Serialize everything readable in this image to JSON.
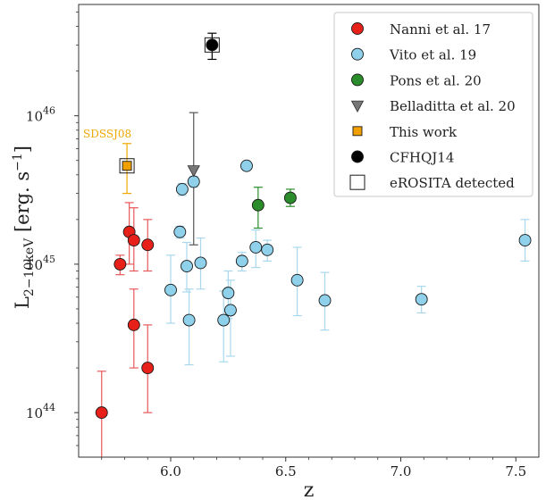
{
  "chart_data": {
    "type": "scatter",
    "title": "",
    "xlabel": "z",
    "ylabel": {
      "main": "L",
      "sub": "2−10keV",
      "unit": " [erg. s",
      "exp": "−1",
      "close": "]"
    },
    "xlim": [
      5.6,
      7.6
    ],
    "ylim_log10": [
      43.7,
      46.75
    ],
    "yscale": "log",
    "grid": false,
    "legend_position": "top-right",
    "x_ticks": [
      {
        "value": 6.0,
        "label": "6.0"
      },
      {
        "value": 6.5,
        "label": "6.5"
      },
      {
        "value": 7.0,
        "label": "7.0"
      },
      {
        "value": 7.5,
        "label": "7.5"
      }
    ],
    "y_ticks": [
      {
        "log": 44,
        "base": "10",
        "exp": "44"
      },
      {
        "log": 45,
        "base": "10",
        "exp": "45"
      },
      {
        "log": 46,
        "base": "10",
        "exp": "46"
      }
    ],
    "annotation": {
      "text": "SDSSJ08",
      "color": "#f0a800"
    },
    "series": [
      {
        "name": "Nanni et al. 17",
        "marker": "circle",
        "color": "#e8201a",
        "errcolor": "#e8585a",
        "points": [
          {
            "x": 5.7,
            "y": 1e+44,
            "ylo": 3e+43,
            "yhi": 1.9e+44
          },
          {
            "x": 5.78,
            "y": 1e+45,
            "ylo": 8.5e+44,
            "yhi": 1.15e+45
          },
          {
            "x": 5.82,
            "y": 1.65e+45,
            "ylo": 1e+45,
            "yhi": 2.6e+45
          },
          {
            "x": 5.84,
            "y": 1.45e+45,
            "ylo": 9e+44,
            "yhi": 2.4e+45
          },
          {
            "x": 5.9,
            "y": 1.35e+45,
            "ylo": 9e+44,
            "yhi": 2e+45
          },
          {
            "x": 5.84,
            "y": 3.9e+44,
            "ylo": 2e+44,
            "yhi": 6.8e+44
          },
          {
            "x": 5.9,
            "y": 2e+44,
            "ylo": 1e+44,
            "yhi": 3.9e+44
          }
        ]
      },
      {
        "name": "Vito et al. 19",
        "marker": "circle",
        "color": "#8fd0ea",
        "errcolor": "#a9d8ee",
        "points": [
          {
            "x": 6.0,
            "y": 6.7e+44,
            "ylo": 4e+44,
            "yhi": 1.15e+45
          },
          {
            "x": 6.04,
            "y": 1.65e+45,
            "ylo": 1.5e+45,
            "yhi": 1.8e+45
          },
          {
            "x": 6.05,
            "y": 3.2e+45,
            "ylo": 2.9e+45,
            "yhi": 3.5e+45
          },
          {
            "x": 6.07,
            "y": 9.7e+44,
            "ylo": 6.5e+44,
            "yhi": 1.4e+45
          },
          {
            "x": 6.08,
            "y": 4.2e+44,
            "ylo": 2.1e+44,
            "yhi": 6.8e+44
          },
          {
            "x": 6.1,
            "y": 3.6e+45,
            "ylo": 3.3e+45,
            "yhi": 3.9e+45
          },
          {
            "x": 6.13,
            "y": 1.02e+45,
            "ylo": 6.8e+44,
            "yhi": 1.5e+45
          },
          {
            "x": 6.23,
            "y": 4.2e+44,
            "ylo": 2.2e+44,
            "yhi": 6.6e+44
          },
          {
            "x": 6.25,
            "y": 6.4e+44,
            "ylo": 4.3e+44,
            "yhi": 9e+44
          },
          {
            "x": 6.26,
            "y": 4.9e+44,
            "ylo": 2.4e+44,
            "yhi": 7.8e+44
          },
          {
            "x": 6.31,
            "y": 1.05e+45,
            "ylo": 9e+44,
            "yhi": 1.2e+45
          },
          {
            "x": 6.33,
            "y": 4.6e+45,
            "ylo": 4.3e+45,
            "yhi": 4.9e+45
          },
          {
            "x": 6.37,
            "y": 1.3e+45,
            "ylo": 9.5e+44,
            "yhi": 1.7e+45
          },
          {
            "x": 6.42,
            "y": 1.25e+45,
            "ylo": 1.05e+45,
            "yhi": 1.45e+45
          },
          {
            "x": 6.55,
            "y": 7.8e+44,
            "ylo": 4.5e+44,
            "yhi": 1.3e+45
          },
          {
            "x": 6.67,
            "y": 5.7e+44,
            "ylo": 3.6e+44,
            "yhi": 8.8e+44
          },
          {
            "x": 7.09,
            "y": 5.8e+44,
            "ylo": 4.7e+44,
            "yhi": 7.1e+44
          },
          {
            "x": 7.54,
            "y": 1.45e+45,
            "ylo": 1.05e+45,
            "yhi": 2e+45
          }
        ]
      },
      {
        "name": "Pons et al. 20",
        "marker": "circle",
        "color": "#2a8c2a",
        "errcolor": "#2a8c2a",
        "points": [
          {
            "x": 6.38,
            "y": 2.5e+45,
            "ylo": 1.75e+45,
            "yhi": 3.3e+45
          },
          {
            "x": 6.52,
            "y": 2.8e+45,
            "ylo": 2.45e+45,
            "yhi": 3.2e+45
          }
        ]
      },
      {
        "name": "Belladitta et al. 20",
        "marker": "triangle",
        "color": "#777777",
        "errcolor": "#555555",
        "points": [
          {
            "x": 6.1,
            "y": 4.3e+45,
            "ylo": 1.35e+45,
            "yhi": 1.05e+46
          }
        ]
      },
      {
        "name": "This work",
        "marker": "square",
        "color": "#f0a000",
        "errcolor": "#f0a800",
        "points": [
          {
            "x": 5.81,
            "y": 4.6e+45,
            "ylo": 3e+45,
            "yhi": 6.5e+45
          }
        ]
      },
      {
        "name": "CFHQJ14",
        "marker": "circle",
        "color": "#000000",
        "errcolor": "#000000",
        "points": [
          {
            "x": 6.18,
            "y": 3e+46,
            "ylo": 2.4e+46,
            "yhi": 3.6e+46
          }
        ]
      },
      {
        "name": "eROSITA detected",
        "marker": "open-square",
        "color": "#000000",
        "errcolor": "#000000",
        "points": [
          {
            "x": 5.81,
            "y": 4.6e+45
          },
          {
            "x": 6.18,
            "y": 3e+46
          }
        ]
      }
    ]
  }
}
